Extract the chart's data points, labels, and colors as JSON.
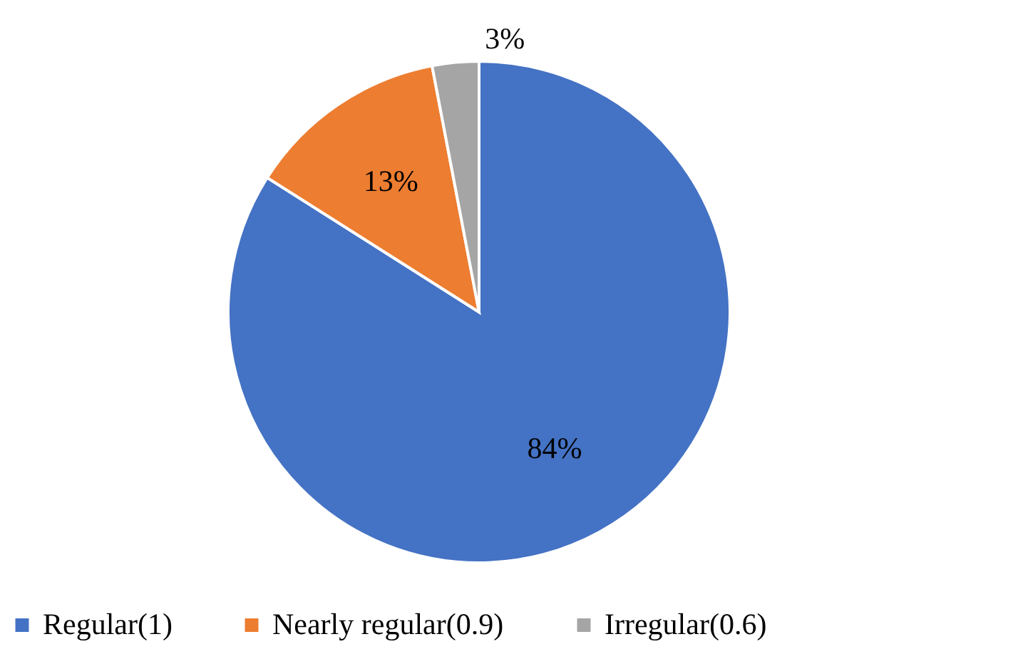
{
  "chart_data": {
    "type": "pie",
    "categories": [
      "Regular(1)",
      "Nearly regular(0.9)",
      "Irregular(0.6)"
    ],
    "values": [
      84,
      13,
      3
    ],
    "colors": [
      "#4472c4",
      "#ed7d31",
      "#a5a5a5"
    ],
    "value_labels": [
      "84%",
      "13%",
      "3%"
    ],
    "legend": "bottom"
  }
}
